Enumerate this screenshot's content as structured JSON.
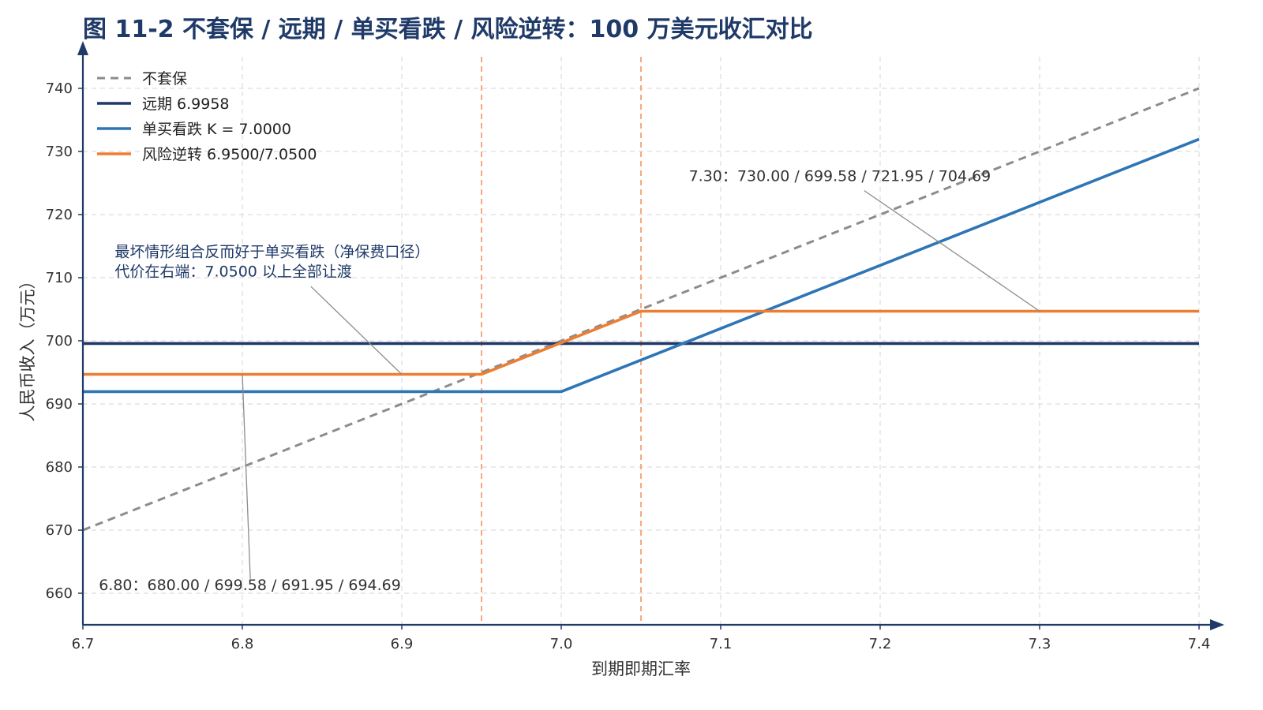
{
  "chart_data": {
    "type": "line",
    "title": "图 11-2 不套保 / 远期 / 单买看跌 / 风险逆转：100 万美元收汇对比",
    "xlabel": "到期即期汇率",
    "ylabel": "人民币收入（万元）",
    "xlim": [
      6.7,
      7.4
    ],
    "ylim": [
      655,
      745
    ],
    "x_ticks": [
      "6.7",
      "6.8",
      "6.9",
      "7.0",
      "7.1",
      "7.2",
      "7.3",
      "7.4"
    ],
    "y_ticks": [
      "660",
      "670",
      "680",
      "690",
      "700",
      "710",
      "720",
      "730",
      "740"
    ],
    "grid": true,
    "legend_position": "top-left",
    "series": [
      {
        "name": "不套保",
        "color": "#8c8c8c",
        "style": "dashed",
        "points": [
          [
            6.7,
            670
          ],
          [
            7.4,
            740
          ]
        ]
      },
      {
        "name": "远期 6.9958",
        "color": "#1f3a68",
        "style": "solid",
        "points": [
          [
            6.7,
            699.58
          ],
          [
            7.4,
            699.58
          ]
        ]
      },
      {
        "name": "单买看跌 K = 7.0000",
        "color": "#2e75b6",
        "style": "solid",
        "points": [
          [
            6.7,
            691.95
          ],
          [
            7.0,
            691.95
          ],
          [
            7.4,
            731.95
          ]
        ]
      },
      {
        "name": "风险逆转 6.9500/7.0500",
        "color": "#ed7d31",
        "style": "solid",
        "points": [
          [
            6.7,
            694.69
          ],
          [
            6.95,
            694.69
          ],
          [
            7.05,
            704.69
          ],
          [
            7.4,
            704.69
          ]
        ]
      }
    ],
    "vlines": [
      {
        "x": 6.95,
        "color": "#f4a070"
      },
      {
        "x": 7.05,
        "color": "#f4a070"
      }
    ],
    "annotations": [
      {
        "lines": [
          "6.80：680.00 / 699.58 / 691.95 / 694.69"
        ],
        "style": "gray",
        "text_x": 6.71,
        "text_y": 660.5,
        "arrow_from": [
          6.805,
          662.3
        ],
        "arrow_to": [
          6.8,
          694.69
        ]
      },
      {
        "lines": [
          "7.30：730.00 / 699.58 / 721.95 / 704.69"
        ],
        "style": "gray",
        "text_x": 7.08,
        "text_y": 725.3,
        "arrow_from": [
          7.19,
          723.8
        ],
        "arrow_to": [
          7.3,
          704.69
        ]
      },
      {
        "lines": [
          "最坏情形组合反而好于单买看跌（净保费口径）",
          "代价在右端：7.0500 以上全部让渡"
        ],
        "style": "blue",
        "text_x": 6.72,
        "text_y": 713.3,
        "arrow_from": [
          6.843,
          708.6
        ],
        "arrow_to": [
          6.9,
          694.69
        ]
      }
    ]
  }
}
